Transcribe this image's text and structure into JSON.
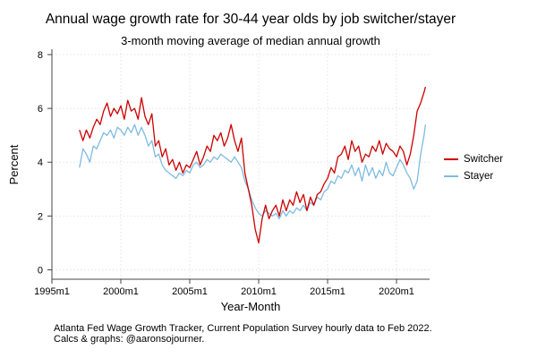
{
  "title": "Annual wage growth rate for 30-44 year olds by job switcher/stayer",
  "subtitle": "3-month moving average of median annual growth",
  "notes": [
    "Atlanta Fed Wage Growth Tracker, Current Population Survey hourly data to Feb 2022.",
    "Calcs & graphs: @aaronsojourner."
  ],
  "chart_data": {
    "type": "line",
    "xlabel": "Year-Month",
    "ylabel": "Percent",
    "xlim": [
      1995,
      2022.4
    ],
    "ylim": [
      -0.35,
      8.2
    ],
    "x_ticks": [
      1995,
      2000,
      2005,
      2010,
      2015,
      2020
    ],
    "x_tick_labels": [
      "1995m1",
      "2000m1",
      "2005m1",
      "2010m1",
      "2015m1",
      "2020m1"
    ],
    "y_ticks": [
      0,
      2,
      4,
      6,
      8
    ],
    "y_tick_labels": [
      "0",
      "2",
      "4",
      "6",
      "8"
    ],
    "grid": true,
    "legend_position": "right",
    "series": [
      {
        "name": "Switcher",
        "color": "#cc0000",
        "points": [
          [
            1997.0,
            5.2
          ],
          [
            1997.25,
            4.8
          ],
          [
            1997.5,
            5.2
          ],
          [
            1997.75,
            4.9
          ],
          [
            1998.0,
            5.3
          ],
          [
            1998.25,
            5.6
          ],
          [
            1998.5,
            5.4
          ],
          [
            1998.75,
            5.9
          ],
          [
            1999.0,
            6.2
          ],
          [
            1999.25,
            5.7
          ],
          [
            1999.5,
            6.0
          ],
          [
            1999.75,
            5.8
          ],
          [
            2000.0,
            6.1
          ],
          [
            2000.25,
            5.6
          ],
          [
            2000.5,
            6.3
          ],
          [
            2000.75,
            5.9
          ],
          [
            2001.0,
            6.0
          ],
          [
            2001.25,
            5.6
          ],
          [
            2001.5,
            6.4
          ],
          [
            2001.75,
            5.7
          ],
          [
            2002.0,
            5.4
          ],
          [
            2002.25,
            5.8
          ],
          [
            2002.5,
            4.6
          ],
          [
            2002.75,
            4.8
          ],
          [
            2003.0,
            4.2
          ],
          [
            2003.25,
            4.5
          ],
          [
            2003.5,
            3.9
          ],
          [
            2003.75,
            4.1
          ],
          [
            2004.0,
            3.7
          ],
          [
            2004.25,
            4.0
          ],
          [
            2004.5,
            3.6
          ],
          [
            2004.75,
            3.9
          ],
          [
            2005.0,
            3.8
          ],
          [
            2005.25,
            4.1
          ],
          [
            2005.5,
            4.4
          ],
          [
            2005.75,
            3.9
          ],
          [
            2006.0,
            4.2
          ],
          [
            2006.25,
            4.6
          ],
          [
            2006.5,
            4.4
          ],
          [
            2006.75,
            5.0
          ],
          [
            2007.0,
            4.8
          ],
          [
            2007.25,
            5.1
          ],
          [
            2007.5,
            4.6
          ],
          [
            2007.75,
            4.9
          ],
          [
            2008.0,
            5.4
          ],
          [
            2008.25,
            4.8
          ],
          [
            2008.5,
            4.4
          ],
          [
            2008.75,
            4.9
          ],
          [
            2009.0,
            3.6
          ],
          [
            2009.25,
            3.0
          ],
          [
            2009.5,
            2.4
          ],
          [
            2009.75,
            1.5
          ],
          [
            2010.0,
            1.0
          ],
          [
            2010.25,
            1.9
          ],
          [
            2010.5,
            2.4
          ],
          [
            2010.75,
            1.9
          ],
          [
            2011.0,
            2.2
          ],
          [
            2011.25,
            2.4
          ],
          [
            2011.5,
            2.0
          ],
          [
            2011.75,
            2.6
          ],
          [
            2012.0,
            2.2
          ],
          [
            2012.25,
            2.6
          ],
          [
            2012.5,
            2.4
          ],
          [
            2012.75,
            2.9
          ],
          [
            2013.0,
            2.5
          ],
          [
            2013.25,
            2.8
          ],
          [
            2013.5,
            2.2
          ],
          [
            2013.75,
            2.7
          ],
          [
            2014.0,
            2.4
          ],
          [
            2014.25,
            2.8
          ],
          [
            2014.5,
            2.9
          ],
          [
            2014.75,
            3.2
          ],
          [
            2015.0,
            3.4
          ],
          [
            2015.25,
            3.8
          ],
          [
            2015.5,
            3.6
          ],
          [
            2015.75,
            4.2
          ],
          [
            2016.0,
            4.3
          ],
          [
            2016.25,
            4.6
          ],
          [
            2016.5,
            4.1
          ],
          [
            2016.75,
            4.8
          ],
          [
            2017.0,
            4.4
          ],
          [
            2017.25,
            4.6
          ],
          [
            2017.5,
            4.0
          ],
          [
            2017.75,
            4.3
          ],
          [
            2018.0,
            4.2
          ],
          [
            2018.25,
            4.6
          ],
          [
            2018.5,
            4.4
          ],
          [
            2018.75,
            4.8
          ],
          [
            2019.0,
            4.3
          ],
          [
            2019.25,
            4.7
          ],
          [
            2019.5,
            4.5
          ],
          [
            2019.75,
            4.4
          ],
          [
            2020.0,
            4.2
          ],
          [
            2020.25,
            4.6
          ],
          [
            2020.5,
            4.4
          ],
          [
            2020.75,
            3.9
          ],
          [
            2021.0,
            4.3
          ],
          [
            2021.25,
            5.0
          ],
          [
            2021.5,
            5.9
          ],
          [
            2021.75,
            6.2
          ],
          [
            2022.0,
            6.6
          ],
          [
            2022.1,
            6.8
          ]
        ]
      },
      {
        "name": "Stayer",
        "color": "#7ebbe0",
        "points": [
          [
            1997.0,
            3.8
          ],
          [
            1997.25,
            4.5
          ],
          [
            1997.5,
            4.3
          ],
          [
            1997.75,
            4.0
          ],
          [
            1998.0,
            4.6
          ],
          [
            1998.25,
            4.5
          ],
          [
            1998.5,
            4.8
          ],
          [
            1998.75,
            5.1
          ],
          [
            1999.0,
            5.0
          ],
          [
            1999.25,
            5.2
          ],
          [
            1999.5,
            4.9
          ],
          [
            1999.75,
            5.3
          ],
          [
            2000.0,
            5.2
          ],
          [
            2000.25,
            5.0
          ],
          [
            2000.5,
            5.3
          ],
          [
            2000.75,
            5.1
          ],
          [
            2001.0,
            5.4
          ],
          [
            2001.25,
            5.0
          ],
          [
            2001.5,
            5.3
          ],
          [
            2001.75,
            5.0
          ],
          [
            2002.0,
            4.6
          ],
          [
            2002.25,
            4.8
          ],
          [
            2002.5,
            4.2
          ],
          [
            2002.75,
            4.3
          ],
          [
            2003.0,
            3.9
          ],
          [
            2003.25,
            3.7
          ],
          [
            2003.5,
            3.6
          ],
          [
            2003.75,
            3.5
          ],
          [
            2004.0,
            3.4
          ],
          [
            2004.25,
            3.6
          ],
          [
            2004.5,
            3.5
          ],
          [
            2004.75,
            3.7
          ],
          [
            2005.0,
            3.6
          ],
          [
            2005.25,
            3.9
          ],
          [
            2005.5,
            4.0
          ],
          [
            2005.75,
            3.8
          ],
          [
            2006.0,
            3.9
          ],
          [
            2006.25,
            4.1
          ],
          [
            2006.5,
            4.0
          ],
          [
            2006.75,
            4.2
          ],
          [
            2007.0,
            4.1
          ],
          [
            2007.25,
            4.3
          ],
          [
            2007.5,
            4.2
          ],
          [
            2007.75,
            4.1
          ],
          [
            2008.0,
            4.0
          ],
          [
            2008.25,
            4.2
          ],
          [
            2008.5,
            4.0
          ],
          [
            2008.75,
            3.8
          ],
          [
            2009.0,
            3.3
          ],
          [
            2009.25,
            3.0
          ],
          [
            2009.5,
            2.6
          ],
          [
            2009.75,
            2.3
          ],
          [
            2010.0,
            2.1
          ],
          [
            2010.25,
            2.0
          ],
          [
            2010.5,
            2.2
          ],
          [
            2010.75,
            2.1
          ],
          [
            2011.0,
            2.0
          ],
          [
            2011.25,
            2.1
          ],
          [
            2011.5,
            1.9
          ],
          [
            2011.75,
            2.2
          ],
          [
            2012.0,
            2.0
          ],
          [
            2012.25,
            2.2
          ],
          [
            2012.5,
            2.1
          ],
          [
            2012.75,
            2.3
          ],
          [
            2013.0,
            2.2
          ],
          [
            2013.25,
            2.4
          ],
          [
            2013.5,
            2.2
          ],
          [
            2013.75,
            2.5
          ],
          [
            2014.0,
            2.4
          ],
          [
            2014.25,
            2.7
          ],
          [
            2014.5,
            2.6
          ],
          [
            2014.75,
            2.9
          ],
          [
            2015.0,
            3.0
          ],
          [
            2015.25,
            3.3
          ],
          [
            2015.5,
            3.2
          ],
          [
            2015.75,
            3.5
          ],
          [
            2016.0,
            3.4
          ],
          [
            2016.25,
            3.7
          ],
          [
            2016.5,
            3.6
          ],
          [
            2016.75,
            3.9
          ],
          [
            2017.0,
            3.5
          ],
          [
            2017.25,
            3.8
          ],
          [
            2017.5,
            3.3
          ],
          [
            2017.75,
            3.9
          ],
          [
            2018.0,
            3.5
          ],
          [
            2018.25,
            3.8
          ],
          [
            2018.5,
            3.4
          ],
          [
            2018.75,
            3.7
          ],
          [
            2019.0,
            3.5
          ],
          [
            2019.25,
            4.0
          ],
          [
            2019.5,
            3.6
          ],
          [
            2019.75,
            3.5
          ],
          [
            2020.0,
            3.8
          ],
          [
            2020.25,
            4.1
          ],
          [
            2020.5,
            3.9
          ],
          [
            2020.75,
            3.6
          ],
          [
            2021.0,
            3.4
          ],
          [
            2021.25,
            3.0
          ],
          [
            2021.5,
            3.3
          ],
          [
            2021.75,
            4.3
          ],
          [
            2022.0,
            5.0
          ],
          [
            2022.1,
            5.4
          ]
        ]
      }
    ]
  }
}
